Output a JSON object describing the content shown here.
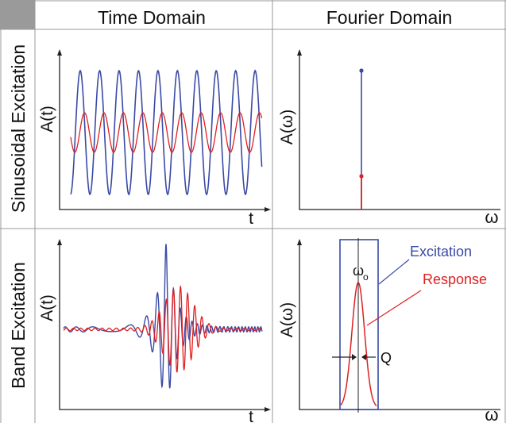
{
  "headers": {
    "time": "Time Domain",
    "fourier": "Fourier Domain"
  },
  "rows": {
    "sinusoidal": "Sinusoidal Excitation",
    "band": "Band Excitation"
  },
  "axes": {
    "time_y": "A(t)",
    "time_x": "t",
    "freq_y": "A(ω)",
    "freq_x": "ω"
  },
  "annotations": {
    "omega0": "ω",
    "omega0_sub": "o",
    "excitation": "Excitation",
    "response": "Response",
    "q": "Q"
  },
  "colors": {
    "excitation": "#3a4aa5",
    "response": "#e02020",
    "grid": "#999999",
    "corner": "#9a9a9a",
    "axis": "#222222"
  },
  "panels": {
    "sinusoidal_time": {
      "excitation_amplitude": 1.0,
      "excitation_cycles": 10,
      "response_amplitude": 0.32
    },
    "sinusoidal_fourier": {
      "excitation_peak": 1.0,
      "response_peak": 0.24
    },
    "band_time": {
      "excitation_peak": 1.0,
      "response_peak": 0.5
    },
    "band_fourier": {
      "response_peak": 1.0,
      "q_level": 0.35
    }
  }
}
